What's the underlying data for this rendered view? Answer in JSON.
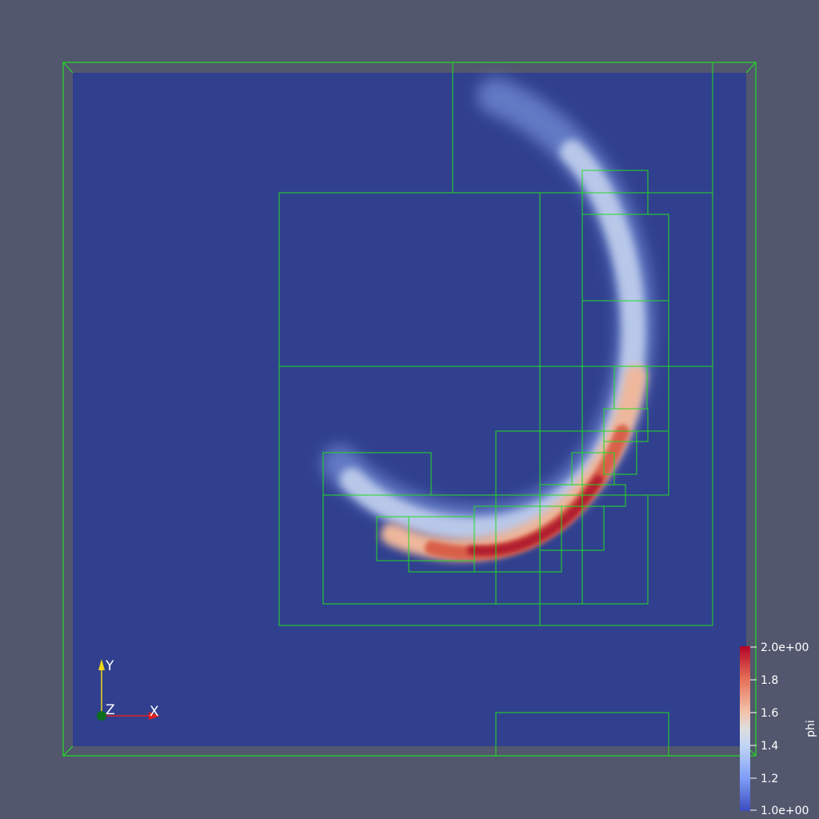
{
  "view": {
    "background_color": "#52576e",
    "field_low_color": "#3b4cc0",
    "field_mid_color": "#dddddd",
    "field_high_color": "#b40426",
    "amr_box_color": "#22dd22"
  },
  "scalar_field": {
    "name": "phi",
    "range": [
      1.0,
      2.0
    ]
  },
  "colorbar": {
    "title": "phi",
    "ticks": [
      "2.0e+00",
      "1.8",
      "1.6",
      "1.4",
      "1.2",
      "1.0e+00"
    ]
  },
  "orientation_axes": {
    "x_label": "X",
    "y_label": "Y",
    "z_label": "Z",
    "x_color": "#e0201e",
    "y_color": "#f0d814",
    "z_color": "#0c6e1c"
  }
}
